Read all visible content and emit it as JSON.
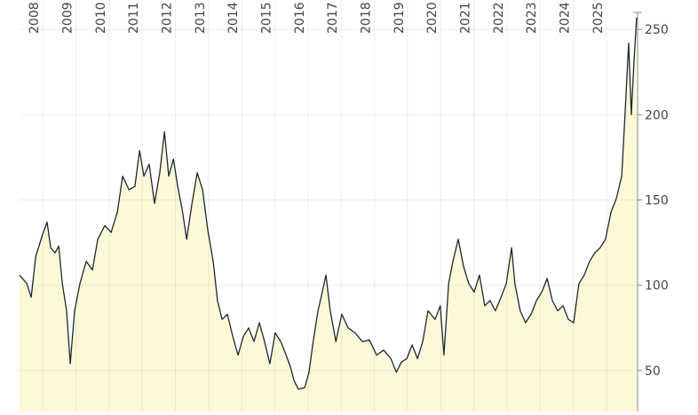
{
  "chart_data": {
    "type": "area",
    "x": [
      2007.3,
      2007.52,
      2007.65,
      2007.79,
      2008.0,
      2008.13,
      2008.24,
      2008.37,
      2008.48,
      2008.59,
      2008.72,
      2008.83,
      2008.96,
      2009.12,
      2009.31,
      2009.5,
      2009.66,
      2009.87,
      2010.06,
      2010.25,
      2010.41,
      2010.6,
      2010.78,
      2010.92,
      2011.05,
      2011.21,
      2011.37,
      2011.53,
      2011.67,
      2011.8,
      2011.94,
      2012.07,
      2012.2,
      2012.34,
      2012.5,
      2012.66,
      2012.82,
      2012.98,
      2013.14,
      2013.27,
      2013.41,
      2013.57,
      2013.73,
      2013.89,
      2014.05,
      2014.21,
      2014.37,
      2014.53,
      2014.69,
      2014.85,
      2015.01,
      2015.18,
      2015.34,
      2015.47,
      2015.58,
      2015.71,
      2015.9,
      2016.03,
      2016.14,
      2016.3,
      2016.43,
      2016.54,
      2016.67,
      2016.84,
      2017.02,
      2017.21,
      2017.42,
      2017.64,
      2017.85,
      2018.07,
      2018.28,
      2018.5,
      2018.66,
      2018.82,
      2018.98,
      2019.14,
      2019.3,
      2019.46,
      2019.62,
      2019.83,
      2019.99,
      2020.1,
      2020.24,
      2020.37,
      2020.53,
      2020.69,
      2020.85,
      2021.01,
      2021.17,
      2021.33,
      2021.49,
      2021.65,
      2021.82,
      2021.98,
      2022.14,
      2022.24,
      2022.4,
      2022.56,
      2022.73,
      2022.89,
      2023.05,
      2023.21,
      2023.37,
      2023.53,
      2023.69,
      2023.85,
      2024.01,
      2024.17,
      2024.33,
      2024.49,
      2024.65,
      2024.81,
      2024.97,
      2025.14,
      2025.3,
      2025.46,
      2025.56,
      2025.67,
      2025.75,
      2025.83,
      2025.91
    ],
    "values": [
      106,
      101,
      93,
      117,
      130,
      137,
      122,
      119,
      123,
      101,
      85,
      54,
      85,
      101,
      114,
      109,
      127,
      135,
      131,
      143,
      164,
      156,
      158,
      179,
      164,
      171,
      148,
      166,
      190,
      164,
      174,
      158,
      145,
      127,
      148,
      166,
      156,
      132,
      114,
      91,
      80,
      83,
      70,
      59,
      70,
      75,
      67,
      78,
      67,
      54,
      72,
      67,
      59,
      52,
      44,
      39,
      40,
      49,
      65,
      85,
      96,
      106,
      85,
      67,
      83,
      75,
      72,
      67,
      68,
      59,
      62,
      57,
      49,
      55,
      57,
      65,
      57,
      67,
      85,
      80,
      88,
      59,
      101,
      114,
      127,
      111,
      101,
      96,
      106,
      88,
      91,
      85,
      93,
      101,
      122,
      101,
      85,
      78,
      83,
      91,
      96,
      104,
      91,
      85,
      88,
      80,
      78,
      101,
      106,
      114,
      119,
      122,
      127,
      143,
      151,
      164,
      200,
      242,
      200,
      231,
      257
    ],
    "color": "#1b2830",
    "fill": "#fdf9d8",
    "xlim": [
      2007.3,
      2025.94
    ],
    "xticks": [
      2008,
      2009,
      2010,
      2011,
      2012,
      2013,
      2014,
      2015,
      2016,
      2017,
      2018,
      2019,
      2020,
      2021,
      2022,
      2023,
      2024,
      2025
    ],
    "ylim": [
      26,
      260
    ],
    "yticks": [
      50,
      100,
      150,
      200,
      250
    ],
    "grid": true
  }
}
